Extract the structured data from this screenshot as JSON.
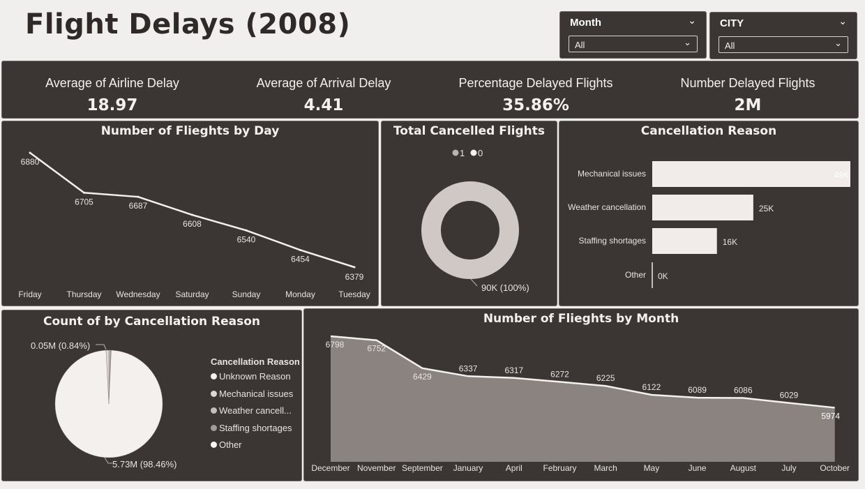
{
  "header": {
    "title": "Flight Delays (2008)"
  },
  "slicers": [
    {
      "label": "Month",
      "value": "All"
    },
    {
      "label": "CITY",
      "value": "All"
    }
  ],
  "kpis": [
    {
      "label": "Average of Airline Delay",
      "value": "18.97"
    },
    {
      "label": "Average of Arrival Delay",
      "value": "4.41"
    },
    {
      "label": "Percentage Delayed Flights",
      "value": "35.86%"
    },
    {
      "label": "Number Delayed Flights",
      "value": "2M"
    }
  ],
  "chart_titles": {
    "by_day": "Number of Flieghts by Day",
    "cancelled": "Total Cancelled Flights",
    "reason": "Cancellation Reason",
    "pie": "Count of by Cancellation Reason",
    "by_month": "Number of Flieghts by Month"
  },
  "colors": {
    "background": "#f1efee",
    "panel": "#3b3634",
    "series": "#f4f0ee",
    "area": "#8a8380"
  },
  "chart_data": [
    {
      "id": "by_day",
      "type": "line",
      "title": "Number of Flieghts by Day",
      "categories": [
        "Friday",
        "Thursday",
        "Wednesday",
        "Saturday",
        "Sunday",
        "Monday",
        "Tuesday"
      ],
      "values": [
        6880,
        6705,
        6687,
        6608,
        6540,
        6454,
        6379
      ],
      "ylim": [
        6379,
        6880
      ]
    },
    {
      "id": "cancelled",
      "type": "pie",
      "title": "Total Cancelled Flights",
      "legend": [
        {
          "name": "1",
          "color": "#b9b2af"
        },
        {
          "name": "0",
          "color": "#f4f0ee"
        }
      ],
      "slices": [
        {
          "name": "0",
          "value": 90000,
          "label": "90K (100%)"
        }
      ]
    },
    {
      "id": "reason",
      "type": "bar",
      "title": "Cancellation Reason",
      "categories": [
        "Mechanical issues",
        "Weather cancellation",
        "Staffing shortages",
        "Other"
      ],
      "values": [
        49000,
        25000,
        16000,
        0
      ],
      "value_labels": [
        "49K",
        "25K",
        "16K",
        "0K"
      ],
      "xlim": [
        0,
        49000
      ]
    },
    {
      "id": "pie",
      "type": "pie",
      "title": "Count of by Cancellation Reason",
      "legend_title": "Cancellation Reason",
      "legend": [
        {
          "name": "Unknown Reason",
          "color": "#f4f0ee"
        },
        {
          "name": "Mechanical issues",
          "color": "#ded8d5"
        },
        {
          "name": "Weather cancell...",
          "color": "#c6bebb"
        },
        {
          "name": "Staffing shortages",
          "color": "#a39b98"
        },
        {
          "name": "Other",
          "color": "#f9f7f6"
        }
      ],
      "slices": [
        {
          "name": "Unknown Reason",
          "value": 5.73,
          "label": "5.73M (98.46%)"
        },
        {
          "name": "Mechanical issues",
          "value": 0.05,
          "label": "0.05M (0.84%)"
        },
        {
          "name": "Weather cancell...",
          "value": 0.025,
          "label": ""
        },
        {
          "name": "Staffing shortages",
          "value": 0.016,
          "label": ""
        }
      ]
    },
    {
      "id": "by_month",
      "type": "area",
      "title": "Number of Flieghts by Month",
      "categories": [
        "December",
        "November",
        "September",
        "January",
        "April",
        "February",
        "March",
        "May",
        "June",
        "August",
        "July",
        "October"
      ],
      "values": [
        6798,
        6752,
        6429,
        6337,
        6317,
        6272,
        6225,
        6122,
        6089,
        6086,
        6029,
        5974
      ],
      "ylim": [
        5350,
        6798
      ]
    }
  ]
}
